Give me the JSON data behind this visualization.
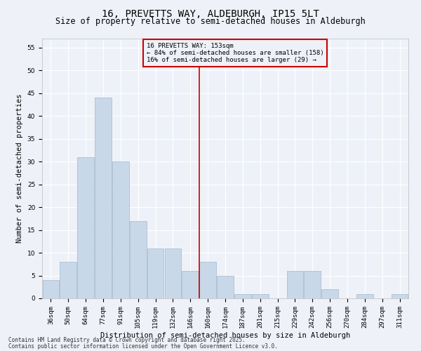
{
  "title": "16, PREVETTS WAY, ALDEBURGH, IP15 5LT",
  "subtitle": "Size of property relative to semi-detached houses in Aldeburgh",
  "xlabel": "Distribution of semi-detached houses by size in Aldeburgh",
  "ylabel": "Number of semi-detached properties",
  "bins": [
    "36sqm",
    "50sqm",
    "64sqm",
    "77sqm",
    "91sqm",
    "105sqm",
    "119sqm",
    "132sqm",
    "146sqm",
    "160sqm",
    "174sqm",
    "187sqm",
    "201sqm",
    "215sqm",
    "229sqm",
    "242sqm",
    "256sqm",
    "270sqm",
    "284sqm",
    "297sqm",
    "311sqm"
  ],
  "values": [
    4,
    8,
    31,
    44,
    30,
    17,
    11,
    11,
    6,
    8,
    5,
    1,
    1,
    0,
    6,
    6,
    2,
    0,
    1,
    0,
    1
  ],
  "bar_color": "#c8d8e8",
  "bar_edge_color": "#a0b8cc",
  "vline_pos": 8.5,
  "vline_color": "#cc0000",
  "legend_title": "16 PREVETTS WAY: 153sqm",
  "legend_line1": "← 84% of semi-detached houses are smaller (158)",
  "legend_line2": "16% of semi-detached houses are larger (29) →",
  "legend_box_color": "#cc0000",
  "bg_color": "#eef2f8",
  "grid_color": "#ffffff",
  "ylim": [
    0,
    57
  ],
  "yticks": [
    0,
    5,
    10,
    15,
    20,
    25,
    30,
    35,
    40,
    45,
    50,
    55
  ],
  "footnote1": "Contains HM Land Registry data © Crown copyright and database right 2025.",
  "footnote2": "Contains public sector information licensed under the Open Government Licence v3.0.",
  "title_fontsize": 10,
  "subtitle_fontsize": 8.5,
  "axis_label_fontsize": 7.5,
  "tick_fontsize": 6.5,
  "legend_fontsize": 6.5,
  "footnote_fontsize": 5.5
}
